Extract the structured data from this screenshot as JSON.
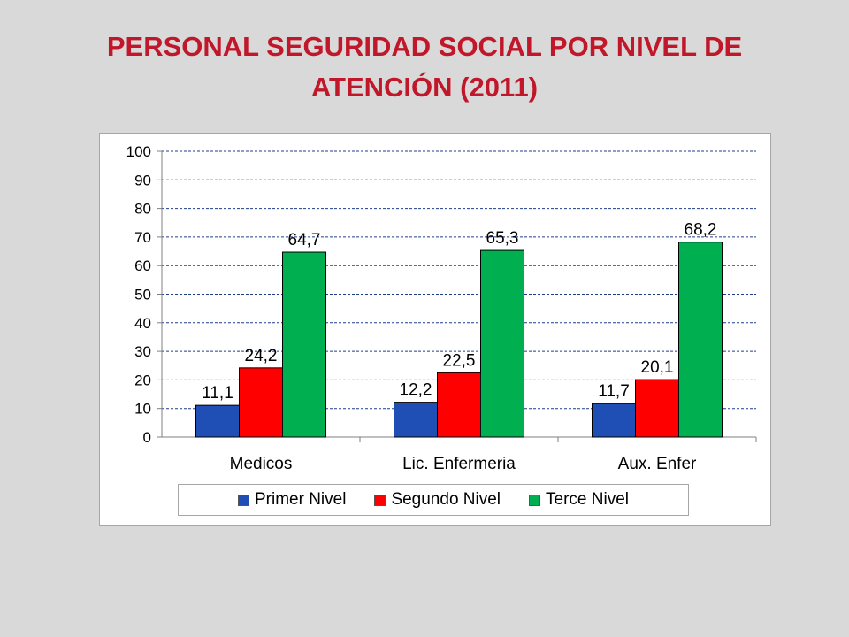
{
  "slide": {
    "title_line1": "PERSONAL SEGURIDAD SOCIAL POR NIVEL DE",
    "title_line2": "ATENCIÓN (2011)"
  },
  "chart_data": {
    "type": "bar",
    "title": "PERSONAL SEGURIDAD SOCIAL POR NIVEL DE ATENCIÓN (2011)",
    "categories": [
      "Medicos",
      "Lic. Enfermeria",
      "Aux. Enfer"
    ],
    "series": [
      {
        "name": "Primer Nivel",
        "color": "#1f4fb4",
        "values": [
          11.1,
          12.2,
          11.7
        ],
        "labels": [
          "11,1",
          "12,2",
          "11,7"
        ]
      },
      {
        "name": "Segundo Nivel",
        "color": "#ff0000",
        "values": [
          24.2,
          22.5,
          20.1
        ],
        "labels": [
          "24,2",
          "22,5",
          "20,1"
        ]
      },
      {
        "name": "Terce Nivel",
        "color": "#00b050",
        "values": [
          64.7,
          65.3,
          68.2
        ],
        "labels": [
          "64,7",
          "65,3",
          "68,2"
        ]
      }
    ],
    "ylim": [
      0,
      100
    ],
    "yticks": [
      0,
      10,
      20,
      30,
      40,
      50,
      60,
      70,
      80,
      90,
      100
    ],
    "grid": true,
    "grid_color": "#1f3c88",
    "legend_position": "bottom"
  }
}
